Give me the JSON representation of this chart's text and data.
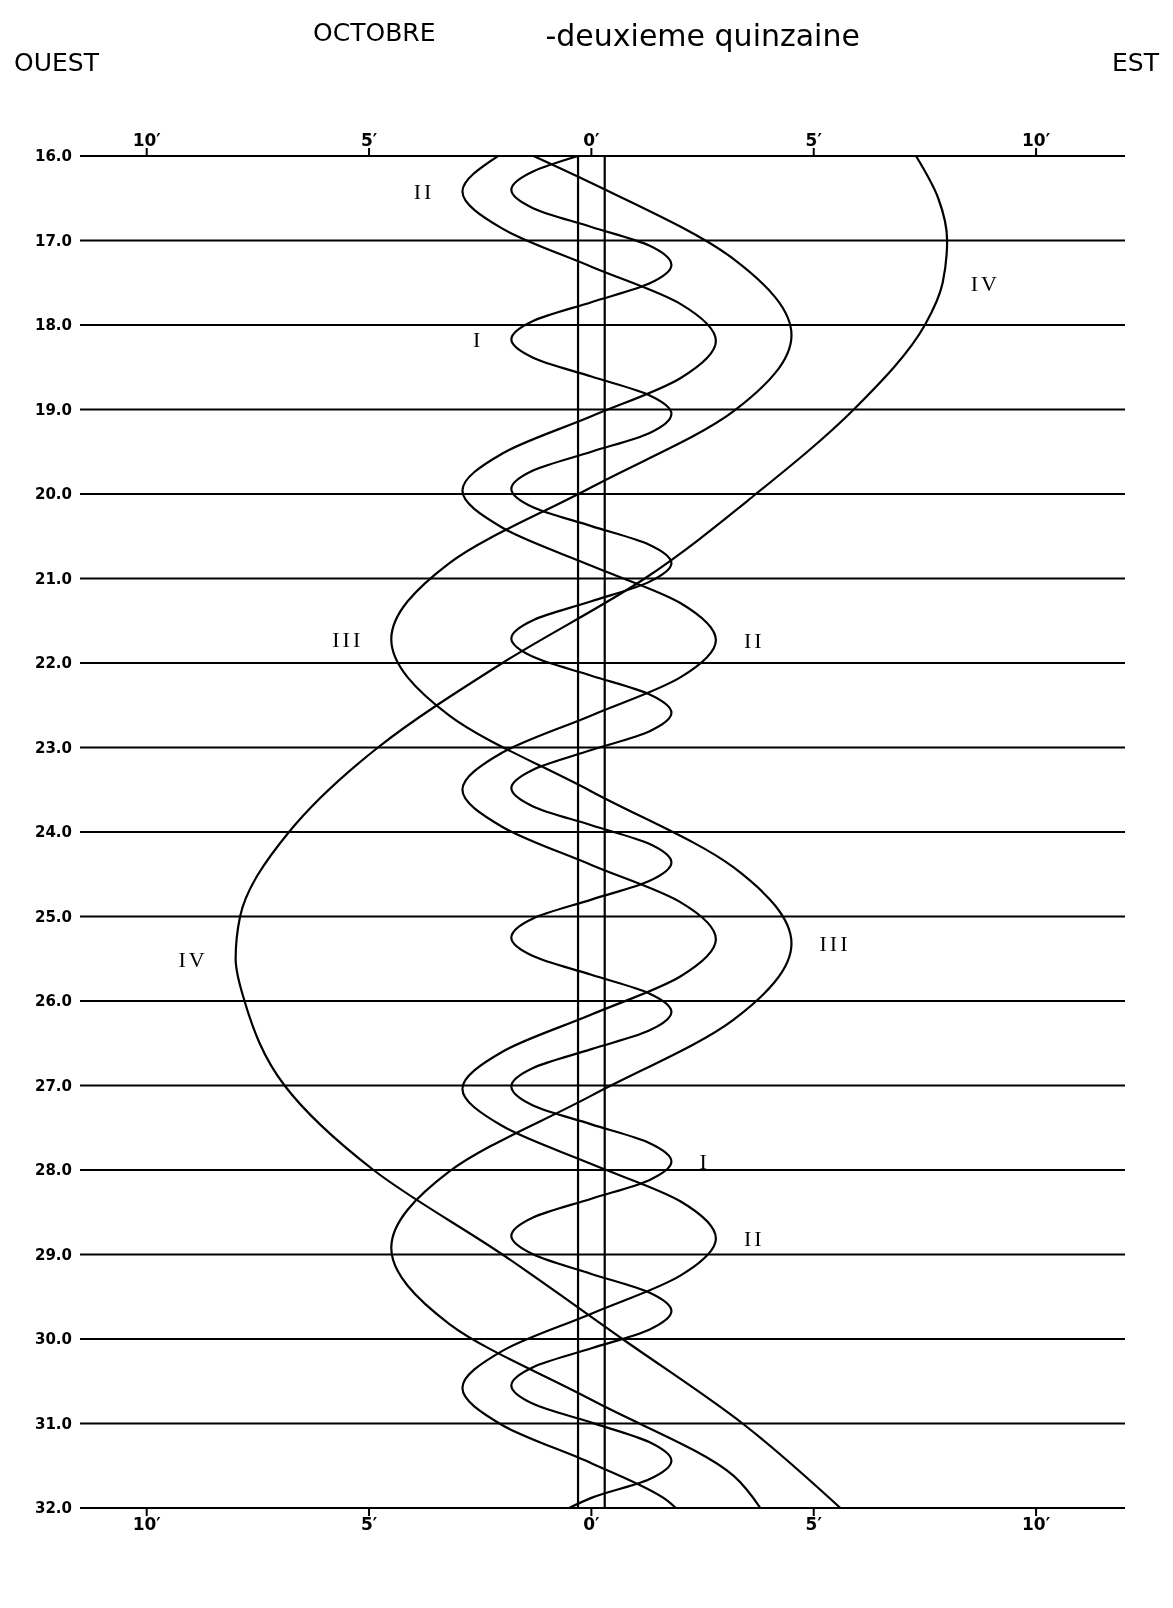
{
  "chart_data": {
    "type": "line",
    "title": "OCTOBRE",
    "subtitle": "-deuxieme quinzaine",
    "annotations": [
      "OUEST",
      "EST",
      {
        "text": "II",
        "x": -2.9,
        "y": 16.42
      },
      {
        "text": "IV",
        "x": 7.9,
        "y": 17.5
      },
      {
        "text": "I",
        "x": -1.8,
        "y": 18.17
      },
      {
        "text": "III",
        "x": -4.5,
        "y": 21.72
      },
      {
        "text": "II",
        "x": 2.8,
        "y": 21.73
      },
      {
        "text": "IV",
        "x": -8.0,
        "y": 25.5
      },
      {
        "text": "III",
        "x": 4.5,
        "y": 25.32
      },
      {
        "text": "I",
        "x": 1.8,
        "y": 27.9
      },
      {
        "text": "II",
        "x": 2.8,
        "y": 28.81
      }
    ],
    "xlim": [
      -11.5,
      12.0
    ],
    "xticks": [
      {
        "value": -10,
        "label": "10′"
      },
      {
        "value": -5,
        "label": "5′"
      },
      {
        "value": 0,
        "label": "0′"
      },
      {
        "value": 5,
        "label": "5′"
      },
      {
        "value": 10,
        "label": "10′"
      }
    ],
    "x2lim": [
      -11.5,
      12.0
    ],
    "x2ticks": [
      {
        "value": -10,
        "label": "10′"
      },
      {
        "value": -5,
        "label": "5′"
      },
      {
        "value": 0,
        "label": "0′"
      },
      {
        "value": 5,
        "label": "5′"
      },
      {
        "value": 10,
        "label": "10′"
      }
    ],
    "ylim": [
      32,
      16
    ],
    "yticks": [
      {
        "value": 16,
        "label": "16.0"
      },
      {
        "value": 17,
        "label": "17.0"
      },
      {
        "value": 18,
        "label": "18.0"
      },
      {
        "value": 19,
        "label": "19.0"
      },
      {
        "value": 20,
        "label": "20.0"
      },
      {
        "value": 21,
        "label": "21.0"
      },
      {
        "value": 22,
        "label": "22.0"
      },
      {
        "value": 23,
        "label": "23.0"
      },
      {
        "value": 24,
        "label": "24.0"
      },
      {
        "value": 25,
        "label": "25.0"
      },
      {
        "value": 26,
        "label": "26.0"
      },
      {
        "value": 27,
        "label": "27.0"
      },
      {
        "value": 28,
        "label": "28.0"
      },
      {
        "value": 29,
        "label": "29.0"
      },
      {
        "value": 30,
        "label": "30.0"
      },
      {
        "value": 31,
        "label": "31.0"
      },
      {
        "value": 32,
        "label": "32.0"
      }
    ],
    "grid": "y",
    "marker": "none",
    "line_style": "solid",
    "ref_lines": [
      {
        "axis": "x",
        "value": -0.3,
        "color": "#000000"
      },
      {
        "axis": "x",
        "value": 0.3,
        "color": "#000000"
      }
    ],
    "series": [
      {
        "color": "#000000",
        "x": [
          -0.3,
          -1.3,
          -1.8,
          -1.3,
          0,
          1.3,
          1.8,
          1.3,
          0,
          -1.3,
          -1.8,
          -1.3,
          0,
          1.3,
          1.8,
          1.3,
          0,
          -1.3,
          -1.8,
          -1.3,
          0,
          1.3,
          1.8,
          1.3,
          0,
          -1.3,
          -1.8,
          -1.3,
          0,
          1.3,
          1.8,
          1.3,
          0,
          -1.3,
          -1.8,
          -1.3,
          0,
          1.3,
          1.8,
          1.3,
          0,
          -1.3,
          -1.8,
          -1.3,
          0,
          1.3,
          1.8,
          1.3,
          0,
          -1.3,
          -1.8,
          -1.3,
          0,
          1.3,
          1.8,
          1.3,
          0,
          -1.3,
          -1.8,
          -1.3,
          0,
          1.3,
          1.8,
          1.3,
          0,
          -1.3,
          -1.8,
          -1.3,
          0,
          1.3,
          1.8,
          1.3,
          0,
          -0.5
        ],
        "values": [
          16.0,
          16.18,
          16.4,
          16.62,
          16.84,
          17.06,
          17.29,
          17.51,
          17.73,
          17.95,
          18.17,
          18.39,
          18.61,
          18.83,
          19.05,
          19.28,
          19.5,
          19.72,
          19.94,
          20.16,
          20.38,
          20.6,
          20.82,
          21.04,
          21.27,
          21.49,
          21.71,
          21.93,
          22.15,
          22.37,
          22.59,
          22.81,
          23.03,
          23.26,
          23.48,
          23.7,
          23.92,
          24.14,
          24.36,
          24.58,
          24.8,
          25.02,
          25.25,
          25.47,
          25.69,
          25.91,
          26.13,
          26.35,
          26.57,
          26.79,
          27.01,
          27.24,
          27.46,
          27.68,
          27.9,
          28.12,
          28.34,
          28.56,
          28.78,
          29.0,
          29.23,
          29.45,
          29.67,
          29.89,
          30.11,
          30.33,
          30.55,
          30.77,
          30.99,
          31.22,
          31.44,
          31.66,
          31.88,
          32.0
        ]
      },
      {
        "color": "#000000",
        "x": [
          -2.1,
          -2.9,
          -2.0,
          0,
          2.0,
          2.8,
          2.0,
          0,
          -2.0,
          -2.9,
          -2.0,
          0,
          2.0,
          2.8,
          2.0,
          0,
          -2.0,
          -2.9,
          -2.0,
          0,
          2.0,
          2.8,
          2.0,
          0,
          -2.0,
          -2.9,
          -2.0,
          0,
          2.0,
          2.8,
          2.0,
          0,
          -2.0,
          -2.9,
          -2.0,
          0,
          1.7,
          1.9
        ],
        "values": [
          16.0,
          16.42,
          16.86,
          17.31,
          17.75,
          18.19,
          18.63,
          19.08,
          19.52,
          19.96,
          20.4,
          20.85,
          21.29,
          21.73,
          22.17,
          22.62,
          23.06,
          23.5,
          23.94,
          24.39,
          24.83,
          25.27,
          25.71,
          26.16,
          26.6,
          27.04,
          27.48,
          27.93,
          28.37,
          28.81,
          29.25,
          29.7,
          30.14,
          30.58,
          31.02,
          31.47,
          31.91,
          32.0
        ]
      },
      {
        "color": "#000000",
        "x": [
          -1.3,
          0,
          3.2,
          4.5,
          3.2,
          0,
          -3.2,
          -4.5,
          -3.2,
          0,
          3.2,
          4.5,
          3.2,
          0,
          -3.2,
          -4.5,
          -3.2,
          0,
          3.2,
          3.8
        ],
        "values": [
          16.0,
          16.32,
          17.22,
          18.12,
          19.02,
          19.92,
          20.82,
          21.72,
          22.62,
          23.52,
          24.42,
          25.32,
          26.22,
          27.12,
          28.02,
          28.92,
          29.82,
          30.72,
          31.62,
          32.0
        ]
      },
      {
        "color": "#000000",
        "x": [
          7.3,
          7.8,
          8.0,
          7.9,
          7.5,
          5.9,
          3.7,
          1.2,
          -2.0,
          -4.8,
          -6.8,
          -7.9,
          -8.0,
          -7.8,
          -6.9,
          -4.9,
          -2.0,
          0.7,
          3.4,
          5.6
        ],
        "values": [
          16,
          16.5,
          17,
          17.5,
          18,
          19,
          20,
          21,
          22,
          23,
          24,
          25,
          25.5,
          26,
          27,
          28,
          29,
          30,
          31,
          32
        ]
      }
    ]
  }
}
